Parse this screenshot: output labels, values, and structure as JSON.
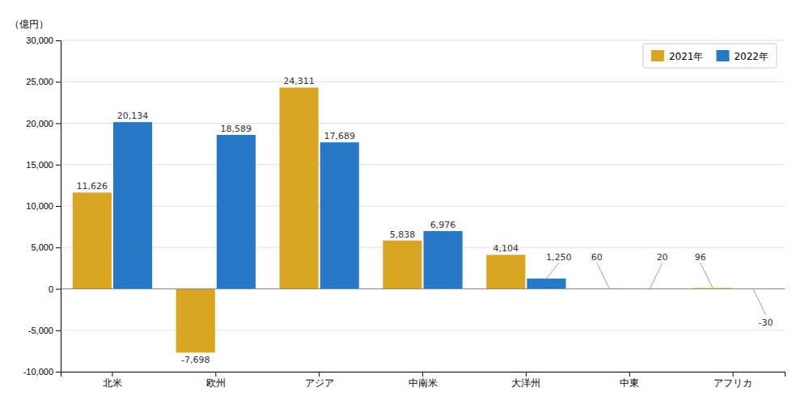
{
  "chart_data": {
    "type": "bar",
    "categories": [
      "北米",
      "欧州",
      "アジア",
      "中南米",
      "大洋州",
      "中東",
      "アフリカ"
    ],
    "series": [
      {
        "name": "2021年",
        "color": "#DAA520",
        "values": [
          11626,
          -7698,
          24311,
          5838,
          4104,
          60,
          96
        ],
        "value_labels": [
          "11,626",
          "-7,698",
          "24,311",
          "5,838",
          "4,104",
          "60",
          "96"
        ]
      },
      {
        "name": "2022年",
        "color": "#2878C8",
        "values": [
          20134,
          18589,
          17689,
          6976,
          1250,
          20,
          -30
        ],
        "value_labels": [
          "20,134",
          "18,589",
          "17,689",
          "6,976",
          "1,250",
          "20",
          "-30"
        ]
      }
    ],
    "y_label": "（億円）",
    "ylim": [
      -10000,
      30000
    ],
    "yticks": [
      {
        "value": -10000,
        "label": "-10,000"
      },
      {
        "value": -5000,
        "label": "-5,000"
      },
      0,
      {
        "value": 5000,
        "label": "5,000"
      },
      {
        "value": 10000,
        "label": "10,000"
      },
      {
        "value": 15000,
        "label": "15,000"
      },
      {
        "value": 20000,
        "label": "20,000"
      },
      {
        "value": 25000,
        "label": "25,000"
      },
      {
        "value": 30000,
        "label": "30,000"
      }
    ],
    "grid": true,
    "legend": "upper right",
    "data_labels": true
  }
}
